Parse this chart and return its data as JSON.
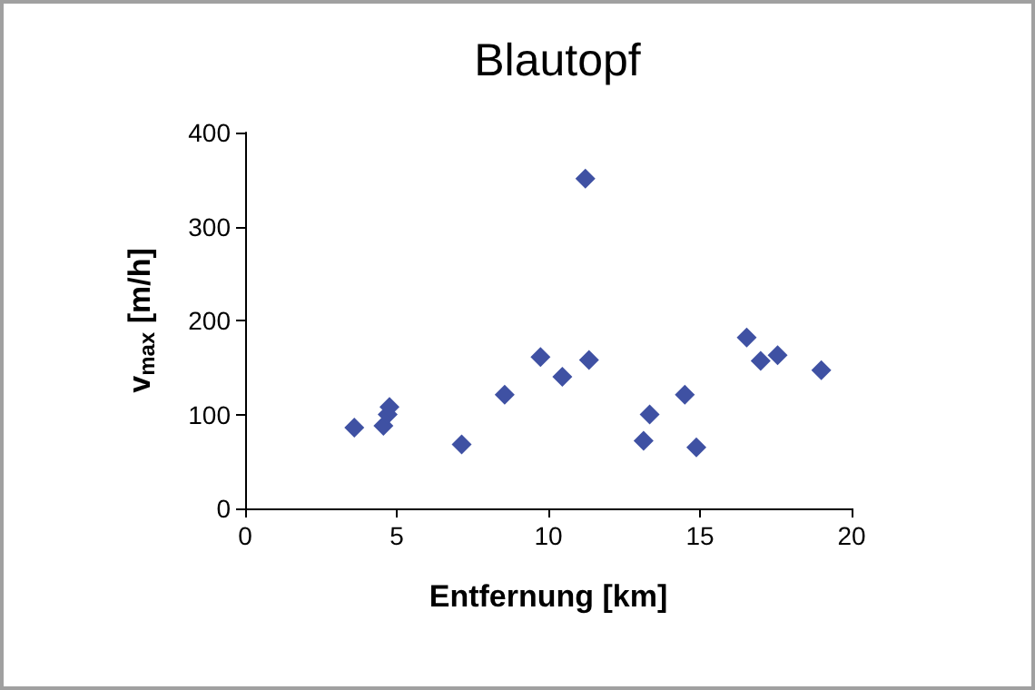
{
  "chart_data": {
    "type": "scatter",
    "title": "Blautopf",
    "xlabel": "Entfernung [km]",
    "ylabel": "v$_{max}$ [m/h]",
    "x": [
      3.6,
      4.56,
      4.7,
      4.76,
      7.14,
      8.56,
      9.74,
      10.46,
      11.22,
      11.34,
      13.14,
      13.34,
      14.5,
      14.88,
      16.54,
      17.0,
      17.56,
      19.0
    ],
    "series": [
      {
        "color": "#3f51a3",
        "values": [
          86,
          88,
          100,
          108,
          68,
          121,
          161,
          140,
          351,
          158,
          72,
          100,
          121,
          65,
          182,
          157,
          163,
          147
        ]
      }
    ],
    "xlim": [
      0,
      20
    ],
    "xticks": [
      0,
      5,
      10,
      15,
      20
    ],
    "ylim": [
      0,
      400
    ],
    "yticks": [
      0,
      100,
      200,
      300,
      400
    ],
    "grid": false,
    "marker": "diamond"
  }
}
